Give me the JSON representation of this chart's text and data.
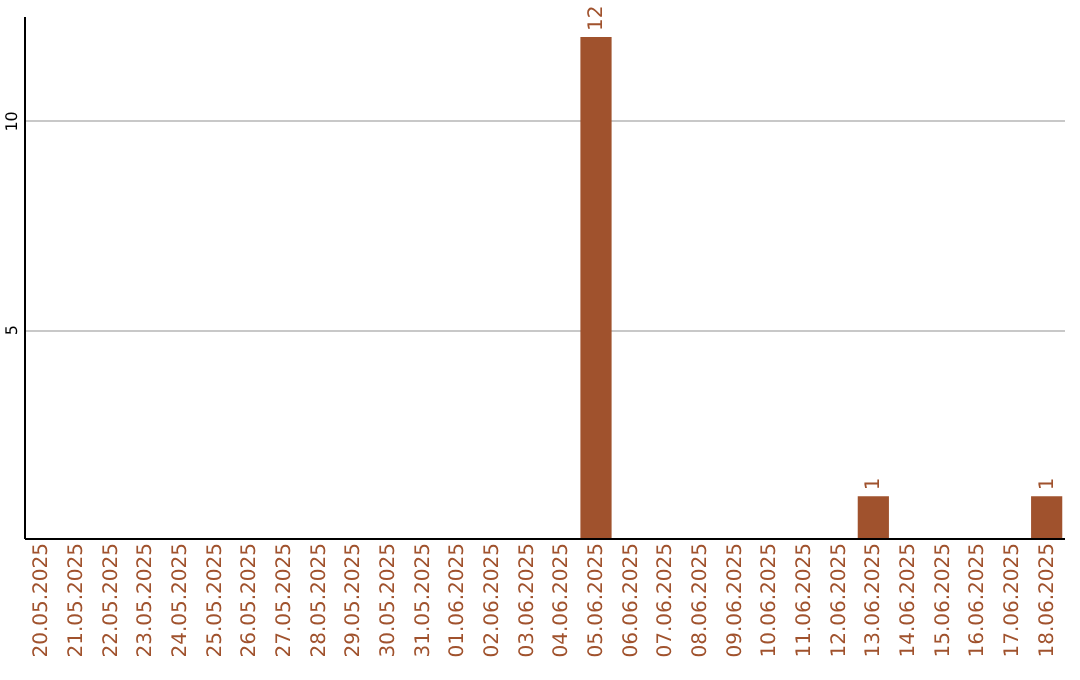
{
  "chart_data": {
    "type": "bar",
    "categories": [
      "20.05.2025",
      "21.05.2025",
      "22.05.2025",
      "23.05.2025",
      "24.05.2025",
      "25.05.2025",
      "26.05.2025",
      "27.05.2025",
      "28.05.2025",
      "29.05.2025",
      "30.05.2025",
      "31.05.2025",
      "01.06.2025",
      "02.06.2025",
      "03.06.2025",
      "04.06.2025",
      "05.06.2025",
      "06.06.2025",
      "07.06.2025",
      "08.06.2025",
      "09.06.2025",
      "10.06.2025",
      "11.06.2025",
      "12.06.2025",
      "13.06.2025",
      "14.06.2025",
      "15.06.2025",
      "16.06.2025",
      "17.06.2025",
      "18.06.2025"
    ],
    "values": [
      0,
      0,
      0,
      0,
      0,
      0,
      0,
      0,
      0,
      0,
      0,
      0,
      0,
      0,
      0,
      0,
      12,
      0,
      0,
      0,
      0,
      0,
      0,
      0,
      1,
      0,
      0,
      0,
      0,
      1
    ],
    "value_labels": [
      null,
      null,
      null,
      null,
      null,
      null,
      null,
      null,
      null,
      null,
      null,
      null,
      null,
      null,
      null,
      null,
      "12",
      null,
      null,
      null,
      null,
      null,
      null,
      null,
      "1",
      null,
      null,
      null,
      null,
      "1"
    ],
    "color": "#a0522d",
    "ylim": [
      0,
      12.5
    ],
    "yticks": [
      5,
      10
    ],
    "grid": "y"
  }
}
